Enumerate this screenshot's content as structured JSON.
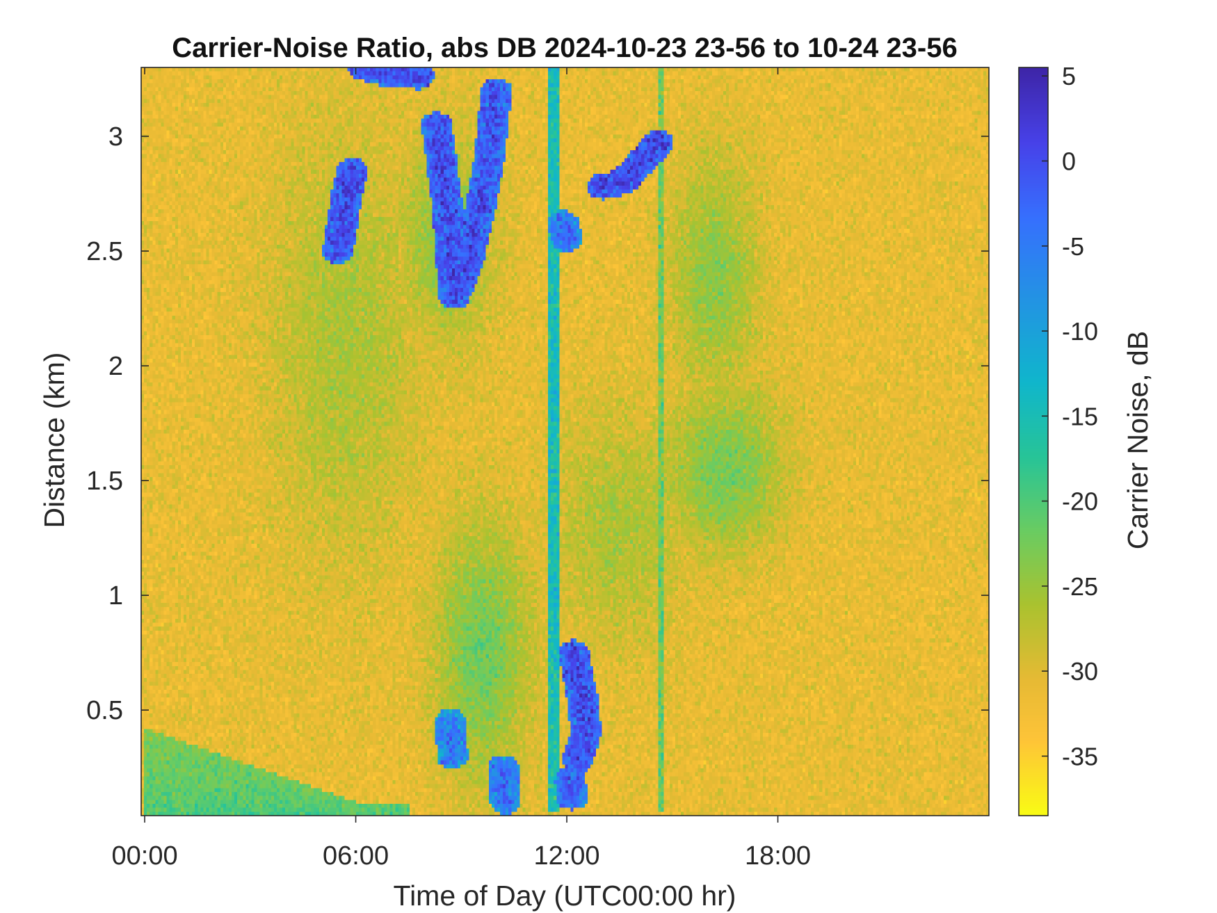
{
  "chart_data": {
    "type": "heatmap",
    "title": "Carrier-Noise Ratio, abs DB 2024-10-23 23-56 to 10-24 23-56",
    "xlabel": "Time of Day (UTC00:00 hr)",
    "ylabel": "Distance (km)",
    "colorbar_label": "Carrier Noise, dB",
    "xlim_hours": [
      -0.1,
      24.0
    ],
    "ylim_km": [
      0.04,
      3.3
    ],
    "clim_db": [
      -38.5,
      5.5
    ],
    "x_ticks": [
      {
        "value": 0,
        "label": "00:00"
      },
      {
        "value": 6,
        "label": "06:00"
      },
      {
        "value": 12,
        "label": "12:00"
      },
      {
        "value": 18,
        "label": "18:00"
      }
    ],
    "y_ticks": [
      {
        "value": 0.5,
        "label": "0.5"
      },
      {
        "value": 1,
        "label": "1"
      },
      {
        "value": 1.5,
        "label": "1.5"
      },
      {
        "value": 2,
        "label": "2"
      },
      {
        "value": 2.5,
        "label": "2.5"
      },
      {
        "value": 3,
        "label": "3"
      }
    ],
    "colorbar_ticks": [
      {
        "value": 5,
        "label": "5"
      },
      {
        "value": 0,
        "label": "0"
      },
      {
        "value": -5,
        "label": "-5"
      },
      {
        "value": -10,
        "label": "-10"
      },
      {
        "value": -15,
        "label": "-15"
      },
      {
        "value": -20,
        "label": "-20"
      },
      {
        "value": -25,
        "label": "-25"
      },
      {
        "value": -30,
        "label": "-30"
      },
      {
        "value": -35,
        "label": "-35"
      }
    ],
    "colormap": "parula",
    "background_db": -31,
    "noise_db": 2.5,
    "features": [
      {
        "kind": "surface_layer",
        "db": -20,
        "hours": [
          0,
          6
        ],
        "top_km_start": 0.42,
        "top_km_end": 0.1
      },
      {
        "kind": "blob",
        "db": -26,
        "center_hours": 5.7,
        "center_km": 2.1,
        "sigma_hours": 2.0,
        "sigma_km": 0.9
      },
      {
        "kind": "blob",
        "db": -22,
        "center_hours": 9.6,
        "center_km": 0.75,
        "sigma_hours": 1.3,
        "sigma_km": 0.55
      },
      {
        "kind": "blob",
        "db": -24,
        "center_hours": 8.6,
        "center_km": 2.55,
        "sigma_hours": 1.3,
        "sigma_km": 0.45
      },
      {
        "kind": "blob",
        "db": -24,
        "center_hours": 16.2,
        "center_km": 2.4,
        "sigma_hours": 1.2,
        "sigma_km": 0.5
      },
      {
        "kind": "blob",
        "db": -22.5,
        "center_hours": 16.5,
        "center_km": 1.55,
        "sigma_hours": 1.6,
        "sigma_km": 0.35
      },
      {
        "kind": "blob",
        "db": -26,
        "center_hours": 13.5,
        "center_km": 1.3,
        "sigma_hours": 1.8,
        "sigma_km": 0.5
      },
      {
        "kind": "vertical_streak",
        "db": -15,
        "hours": 11.65,
        "width_hours": 0.35,
        "km": [
          0.05,
          3.3
        ]
      },
      {
        "kind": "vertical_streak",
        "db": -22,
        "hours": 14.65,
        "width_hours": 0.15,
        "km": [
          0.05,
          3.3
        ]
      },
      {
        "kind": "cloud_track",
        "db": 1,
        "points": [
          {
            "hours": 5.5,
            "km": 2.5
          },
          {
            "hours": 5.75,
            "km": 2.75
          },
          {
            "hours": 5.9,
            "km": 2.85
          }
        ]
      },
      {
        "kind": "cloud_track",
        "db": 1,
        "points": [
          {
            "hours": 6.2,
            "km": 3.3
          },
          {
            "hours": 6.9,
            "km": 3.27
          },
          {
            "hours": 7.8,
            "km": 3.26
          }
        ]
      },
      {
        "kind": "cloud_track",
        "db": 1,
        "points": [
          {
            "hours": 8.3,
            "km": 3.05
          },
          {
            "hours": 8.6,
            "km": 2.7
          },
          {
            "hours": 8.8,
            "km": 2.3
          },
          {
            "hours": 9.2,
            "km": 2.45
          },
          {
            "hours": 9.4,
            "km": 2.6
          }
        ]
      },
      {
        "kind": "cloud_track",
        "db": 0,
        "points": [
          {
            "hours": 9.5,
            "km": 2.65
          },
          {
            "hours": 9.8,
            "km": 2.9
          },
          {
            "hours": 10.0,
            "km": 3.2
          }
        ]
      },
      {
        "kind": "cloud_track",
        "db": 2,
        "points": [
          {
            "hours": 13.0,
            "km": 2.78
          },
          {
            "hours": 13.6,
            "km": 2.8
          },
          {
            "hours": 14.2,
            "km": 2.9
          },
          {
            "hours": 14.6,
            "km": 2.97
          }
        ]
      },
      {
        "kind": "cloud_track",
        "db": -3,
        "points": [
          {
            "hours": 11.9,
            "km": 2.62
          },
          {
            "hours": 12.0,
            "km": 2.55
          }
        ]
      },
      {
        "kind": "cloud_track",
        "db": 1,
        "points": [
          {
            "hours": 12.2,
            "km": 0.75
          },
          {
            "hours": 12.45,
            "km": 0.55
          },
          {
            "hours": 12.55,
            "km": 0.4
          },
          {
            "hours": 12.3,
            "km": 0.28
          }
        ]
      },
      {
        "kind": "cloud_track",
        "db": -4,
        "points": [
          {
            "hours": 8.7,
            "km": 0.45
          },
          {
            "hours": 8.75,
            "km": 0.3
          }
        ]
      },
      {
        "kind": "cloud_track",
        "db": -3,
        "points": [
          {
            "hours": 10.2,
            "km": 0.25
          },
          {
            "hours": 10.25,
            "km": 0.1
          }
        ]
      },
      {
        "kind": "cloud_track",
        "db": -1,
        "points": [
          {
            "hours": 12.1,
            "km": 0.2
          },
          {
            "hours": 12.15,
            "km": 0.12
          }
        ]
      }
    ]
  }
}
